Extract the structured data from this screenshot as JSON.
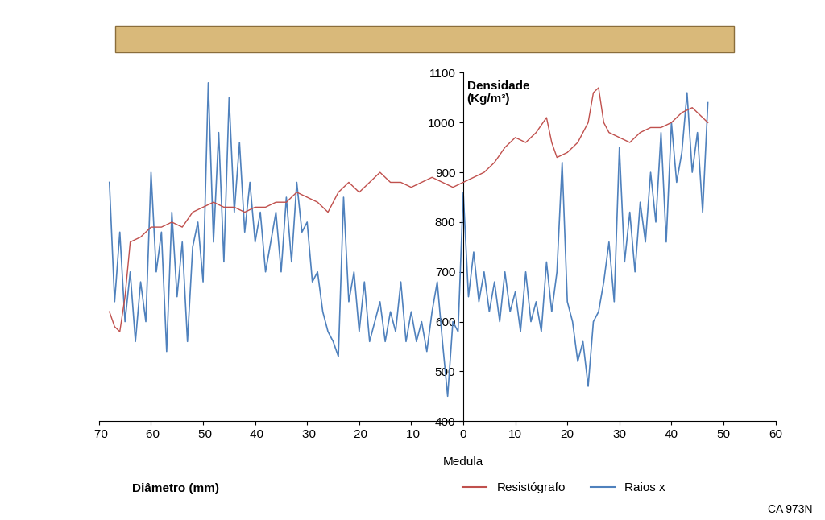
{
  "chart_data": {
    "type": "line",
    "y_label": "Densidade\n(Kg/m³)",
    "x_label": "Diâmetro (mm)",
    "annotation": "Medula",
    "note": "CA 973N",
    "xlim": [
      -70,
      60
    ],
    "xticks": [
      -70,
      -60,
      -50,
      -40,
      -30,
      -20,
      -10,
      0,
      10,
      20,
      30,
      40,
      50,
      60
    ],
    "ylim": [
      400,
      1100
    ],
    "yticks": [
      400,
      500,
      600,
      700,
      800,
      900,
      1000,
      1100
    ],
    "grid": false,
    "legend": "lower right",
    "series": [
      {
        "name": "Resistógrafo",
        "color": "#c0504d",
        "x": [
          -68,
          -67,
          -66,
          -65,
          -64,
          -62,
          -60,
          -58,
          -56,
          -54,
          -52,
          -50,
          -48,
          -46,
          -44,
          -42,
          -40,
          -38,
          -36,
          -34,
          -32,
          -30,
          -28,
          -26,
          -24,
          -22,
          -20,
          -18,
          -16,
          -14,
          -12,
          -10,
          -8,
          -6,
          -4,
          -2,
          0,
          2,
          4,
          6,
          8,
          10,
          12,
          14,
          16,
          17,
          18,
          20,
          22,
          24,
          25,
          26,
          27,
          28,
          30,
          32,
          34,
          36,
          38,
          40,
          42,
          44,
          46,
          47
        ],
        "values": [
          620,
          590,
          580,
          650,
          760,
          770,
          790,
          790,
          800,
          790,
          820,
          830,
          840,
          830,
          830,
          820,
          830,
          830,
          840,
          840,
          860,
          850,
          840,
          820,
          860,
          880,
          860,
          880,
          900,
          880,
          880,
          870,
          880,
          890,
          880,
          870,
          880,
          890,
          900,
          920,
          950,
          970,
          960,
          980,
          1010,
          960,
          930,
          940,
          960,
          1000,
          1060,
          1070,
          1000,
          980,
          970,
          960,
          980,
          990,
          990,
          1000,
          1020,
          1030,
          1010,
          1000
        ]
      },
      {
        "name": "Raios x",
        "color": "#4f81bd",
        "x": [
          -68,
          -67,
          -66,
          -65,
          -64,
          -63,
          -62,
          -61,
          -60,
          -59,
          -58,
          -57,
          -56,
          -55,
          -54,
          -53,
          -52,
          -51,
          -50,
          -49,
          -48,
          -47,
          -46,
          -45,
          -44,
          -43,
          -42,
          -41,
          -40,
          -39,
          -38,
          -37,
          -36,
          -35,
          -34,
          -33,
          -32,
          -31,
          -30,
          -29,
          -28,
          -27,
          -26,
          -25,
          -24,
          -23,
          -22,
          -21,
          -20,
          -19,
          -18,
          -17,
          -16,
          -15,
          -14,
          -13,
          -12,
          -11,
          -10,
          -9,
          -8,
          -7,
          -6,
          -5,
          -4,
          -3,
          -2,
          -1,
          0,
          1,
          2,
          3,
          4,
          5,
          6,
          7,
          8,
          9,
          10,
          11,
          12,
          13,
          14,
          15,
          16,
          17,
          18,
          19,
          20,
          21,
          22,
          23,
          24,
          25,
          26,
          27,
          28,
          29,
          30,
          31,
          32,
          33,
          34,
          35,
          36,
          37,
          38,
          39,
          40,
          41,
          42,
          43,
          44,
          45,
          46,
          47
        ],
        "values": [
          880,
          640,
          780,
          600,
          700,
          560,
          680,
          600,
          900,
          700,
          780,
          540,
          820,
          650,
          760,
          560,
          750,
          800,
          680,
          1080,
          760,
          980,
          720,
          1050,
          820,
          960,
          780,
          880,
          760,
          820,
          700,
          760,
          820,
          700,
          850,
          720,
          880,
          780,
          800,
          680,
          700,
          620,
          580,
          560,
          530,
          850,
          640,
          700,
          580,
          680,
          560,
          600,
          640,
          560,
          620,
          580,
          680,
          560,
          620,
          560,
          600,
          540,
          620,
          680,
          560,
          450,
          600,
          580,
          860,
          650,
          740,
          640,
          700,
          620,
          680,
          600,
          700,
          620,
          660,
          580,
          700,
          600,
          640,
          580,
          720,
          620,
          700,
          920,
          640,
          600,
          520,
          560,
          470,
          600,
          620,
          680,
          760,
          640,
          950,
          720,
          820,
          700,
          840,
          760,
          900,
          800,
          980,
          760,
          1000,
          880,
          940,
          1060,
          900,
          980,
          820,
          1040
        ]
      }
    ]
  }
}
